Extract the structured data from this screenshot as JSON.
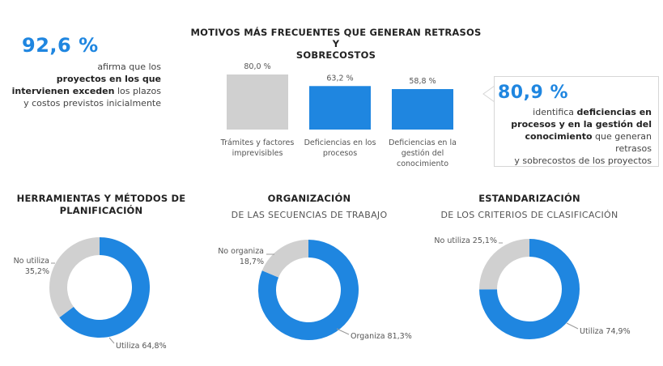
{
  "stat_left": {
    "value": "92,6 %",
    "lines": [
      {
        "parts": [
          {
            "text": "afirma que los",
            "bold": false
          }
        ]
      },
      {
        "parts": [
          {
            "text": "proyectos en los que",
            "bold": true
          }
        ]
      },
      {
        "parts": [
          {
            "text": "intervienen exceden",
            "bold": true
          },
          {
            "text": " los plazos",
            "bold": false
          }
        ]
      },
      {
        "parts": [
          {
            "text": "y costos previstos inicialmente",
            "bold": false
          }
        ]
      }
    ]
  },
  "stat_right": {
    "value": "80,9 %",
    "lines": [
      {
        "parts": [
          {
            "text": "identifica ",
            "bold": false
          },
          {
            "text": "deficiencias en",
            "bold": true
          }
        ]
      },
      {
        "parts": [
          {
            "text": "procesos y en la gestión del",
            "bold": true
          }
        ]
      },
      {
        "parts": [
          {
            "text": "conocimiento",
            "bold": true
          },
          {
            "text": " que generan retrasos",
            "bold": false
          }
        ]
      },
      {
        "parts": [
          {
            "text": "y sobrecostos de los proyectos",
            "bold": false
          }
        ]
      }
    ]
  },
  "colors": {
    "blue": "#1f86e0",
    "gray": "#d0d0d0",
    "text": "#333333"
  },
  "chart_data": [
    {
      "type": "bar",
      "title_lines": [
        "MOTIVOS MÁS FRECUENTES QUE GENERAN RETRASOS Y",
        "SOBRECOSTOS"
      ],
      "ylim": [
        0,
        80
      ],
      "bars": [
        {
          "category_lines": [
            "Trámites y factores",
            "imprevisibles"
          ],
          "value": 80.0,
          "label": "80,0 %",
          "highlight": false
        },
        {
          "category_lines": [
            "Deficiencias en los",
            "procesos"
          ],
          "value": 63.2,
          "label": "63,2 %",
          "highlight": true
        },
        {
          "category_lines": [
            "Deficiencias en la",
            "gestión del",
            "conocimiento"
          ],
          "value": 58.8,
          "label": "58,8 %",
          "highlight": true
        }
      ]
    },
    {
      "type": "pie",
      "title_lines": [
        "HERRAMIENTAS Y MÉTODOS DE",
        "PLANIFICACIÓN"
      ],
      "subtitle": "",
      "slices": [
        {
          "name": "Utiliza",
          "value": 64.8,
          "label_lines": [
            "Utiliza 64,8%"
          ],
          "highlight": true
        },
        {
          "name": "No utiliza",
          "value": 35.2,
          "label_lines": [
            "No utiliza",
            "35,2%"
          ],
          "highlight": false
        }
      ]
    },
    {
      "type": "pie",
      "title_lines": [
        "ORGANIZACIÓN"
      ],
      "subtitle": "DE LAS SECUENCIAS DE TRABAJO",
      "slices": [
        {
          "name": "Organiza",
          "value": 81.3,
          "label_lines": [
            "Organiza 81,3%"
          ],
          "highlight": true
        },
        {
          "name": "No organiza",
          "value": 18.7,
          "label_lines": [
            "No organiza",
            "18,7%"
          ],
          "highlight": false
        }
      ]
    },
    {
      "type": "pie",
      "title_lines": [
        "ESTANDARIZACIÓN"
      ],
      "subtitle": "DE LOS CRITERIOS DE CLASIFICACIÓN",
      "slices": [
        {
          "name": "Utiliza",
          "value": 74.9,
          "label_lines": [
            "Utiliza 74,9%"
          ],
          "highlight": true
        },
        {
          "name": "No utiliza",
          "value": 25.1,
          "label_lines": [
            "No utiliza 25,1%"
          ],
          "highlight": false
        }
      ]
    }
  ]
}
